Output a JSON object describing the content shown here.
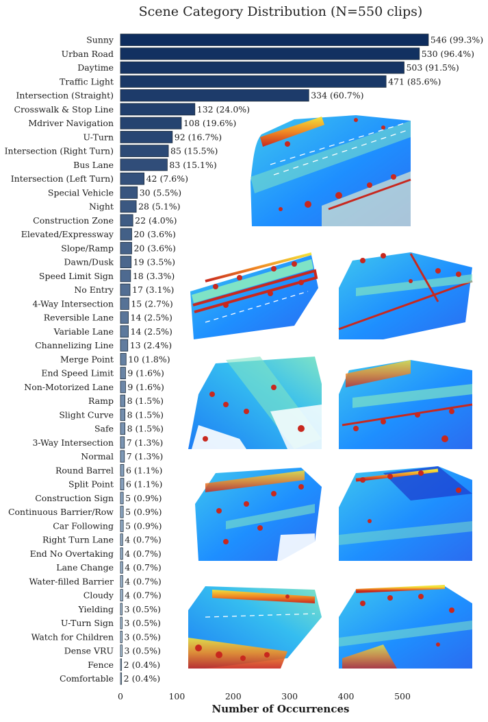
{
  "chart_data": {
    "type": "bar",
    "orientation": "horizontal",
    "title": "Scene Category Distribution (N=550 clips)",
    "xlabel": "Number of Occurrences",
    "ylabel": "",
    "xlim": [
      0,
      610
    ],
    "xticks": [
      0,
      100,
      200,
      300,
      400,
      500
    ],
    "grid": false,
    "categories": [
      "Sunny",
      "Urban Road",
      "Daytime",
      "Traffic Light",
      "Intersection (Straight)",
      "Crosswalk & Stop Line",
      "Mdriver Navigation",
      "U-Turn",
      "Intersection (Right Turn)",
      "Bus Lane",
      "Intersection (Left Turn)",
      "Special Vehicle",
      "Night",
      "Construction Zone",
      "Elevated/Expressway",
      "Slope/Ramp",
      "Dawn/Dusk",
      "Speed Limit Sign",
      "No Entry",
      "4-Way Intersection",
      "Reversible Lane",
      "Variable Lane",
      "Channelizing Line",
      "Merge Point",
      "End Speed Limit",
      "Non-Motorized Lane",
      "Ramp",
      "Slight Curve",
      "Safe",
      "3-Way Intersection",
      "Normal",
      "Round Barrel",
      "Split Point",
      "Construction Sign",
      "Continuous Barrier/Row",
      "Car Following",
      "Right Turn Lane",
      "End No Overtaking",
      "Lane Change",
      "Water-filled Barrier",
      "Cloudy",
      "Yielding",
      "U-Turn Sign",
      "Watch for Children",
      "Dense VRU",
      "Fence",
      "Comfortable"
    ],
    "values": [
      546,
      530,
      503,
      471,
      334,
      132,
      108,
      92,
      85,
      83,
      42,
      30,
      28,
      22,
      20,
      20,
      19,
      18,
      17,
      15,
      14,
      14,
      13,
      10,
      9,
      9,
      8,
      8,
      8,
      7,
      7,
      6,
      6,
      5,
      5,
      5,
      4,
      4,
      4,
      4,
      4,
      3,
      3,
      3,
      3,
      2,
      2
    ],
    "value_labels": [
      "546 (99.3%)",
      "530 (96.4%)",
      "503 (91.5%)",
      "471 (85.6%)",
      "334 (60.7%)",
      "132 (24.0%)",
      "108 (19.6%)",
      "92 (16.7%)",
      "85 (15.5%)",
      "83 (15.1%)",
      "42 (7.6%)",
      "30 (5.5%)",
      "28 (5.1%)",
      "22 (4.0%)",
      "20 (3.6%)",
      "20 (3.6%)",
      "19 (3.5%)",
      "18 (3.3%)",
      "17 (3.1%)",
      "15 (2.7%)",
      "14 (2.5%)",
      "14 (2.5%)",
      "13 (2.4%)",
      "10 (1.8%)",
      "9 (1.6%)",
      "9 (1.6%)",
      "8 (1.5%)",
      "8 (1.5%)",
      "8 (1.5%)",
      "7 (1.3%)",
      "7 (1.3%)",
      "6 (1.1%)",
      "6 (1.1%)",
      "5 (0.9%)",
      "5 (0.9%)",
      "5 (0.9%)",
      "4 (0.7%)",
      "4 (0.7%)",
      "4 (0.7%)",
      "4 (0.7%)",
      "4 (0.7%)",
      "3 (0.5%)",
      "3 (0.5%)",
      "3 (0.5%)",
      "3 (0.5%)",
      "2 (0.4%)",
      "2 (0.4%)"
    ],
    "colormap": "blues-reversed",
    "color_dark": "#0e2d5e",
    "color_light": "#bcd3e6"
  },
  "insets": [
    {
      "icon": "lidar-pointcloud-bev-image",
      "view": "main-road-top"
    },
    {
      "icon": "lidar-pointcloud-bev-image",
      "view": "straight-road-left"
    },
    {
      "icon": "lidar-pointcloud-bev-image",
      "view": "corner-road-right"
    },
    {
      "icon": "lidar-pointcloud-bev-image",
      "view": "intersection-left"
    },
    {
      "icon": "lidar-pointcloud-bev-image",
      "view": "road-parking-right"
    },
    {
      "icon": "lidar-pointcloud-bev-image",
      "view": "crosswalk-left"
    },
    {
      "icon": "lidar-pointcloud-bev-image",
      "view": "dense-blue-right"
    },
    {
      "icon": "lidar-pointcloud-bev-image",
      "view": "vegetation-left"
    },
    {
      "icon": "lidar-pointcloud-bev-image",
      "view": "wide-road-right"
    }
  ],
  "colors": {
    "pc_blue": "#1e90ff",
    "pc_cyan": "#33c7ee",
    "pc_green": "#7fe38a",
    "pc_yellow": "#f2e23a",
    "pc_red": "#c8281e"
  }
}
